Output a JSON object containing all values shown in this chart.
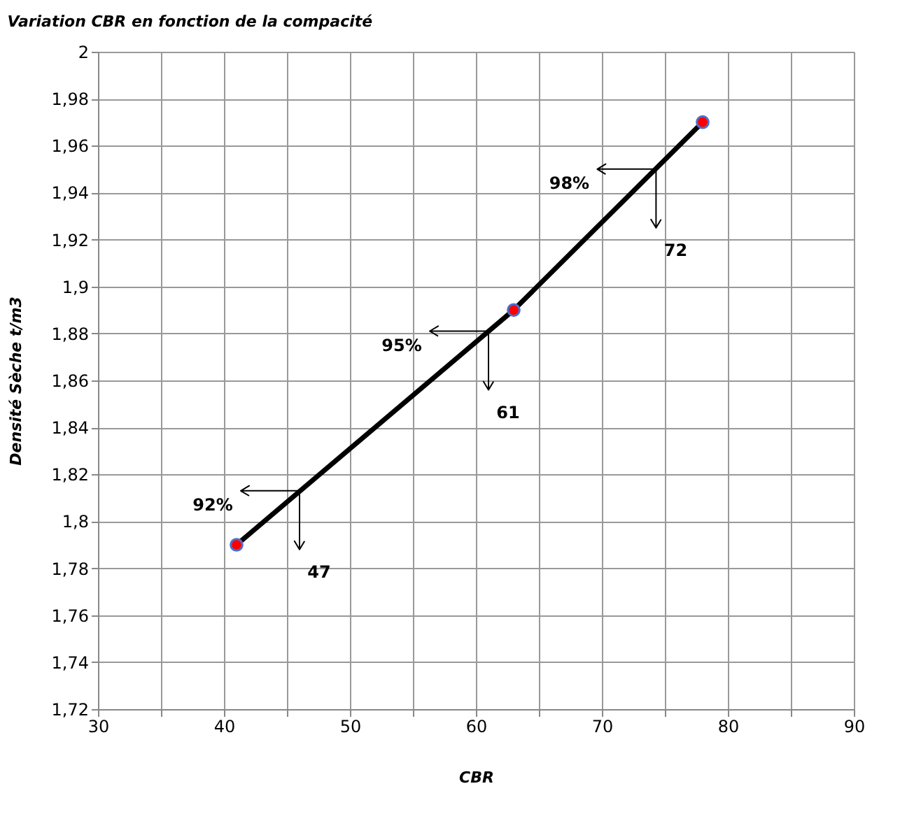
{
  "chart_data": {
    "type": "line",
    "title": "Variation CBR en fonction de la compacité",
    "xlabel": "CBR",
    "ylabel": "Densité Sèche t/m3",
    "x": [
      41,
      63,
      78
    ],
    "series": [
      {
        "color": "#000000",
        "values": [
          1.79,
          1.89,
          1.97
        ]
      },
      {
        "type": "scatter",
        "color": "#ff0000",
        "marker": "circle",
        "values": [
          1.79,
          1.89,
          1.97
        ]
      }
    ],
    "xlim": [
      30,
      90
    ],
    "xticks": [
      30,
      {
        "value": 35,
        "label": null
      },
      40,
      {
        "value": 45,
        "label": null
      },
      50,
      {
        "value": 55,
        "label": null
      },
      60,
      {
        "value": 65,
        "label": null
      },
      70,
      {
        "value": 75,
        "label": null
      },
      80,
      {
        "value": 85,
        "label": null
      },
      90
    ],
    "ylim": [
      1.72,
      2
    ],
    "yticks": [
      {
        "value": 1.72,
        "label": "1,72"
      },
      {
        "value": 1.74,
        "label": "1,74"
      },
      {
        "value": 1.76,
        "label": "1,76"
      },
      {
        "value": 1.78,
        "label": "1,78"
      },
      {
        "value": 1.8,
        "label": "1,8"
      },
      {
        "value": 1.82,
        "label": "1,82"
      },
      {
        "value": 1.84,
        "label": "1,84"
      },
      {
        "value": 1.86,
        "label": "1,86"
      },
      {
        "value": 1.88,
        "label": "1,88"
      },
      {
        "value": 1.9,
        "label": "1,9"
      },
      {
        "value": 1.92,
        "label": "1,92"
      },
      {
        "value": 1.94,
        "label": "1,94"
      },
      {
        "value": 1.96,
        "label": "1,96"
      },
      {
        "value": 1.98,
        "label": "1,98"
      },
      2
    ],
    "grid": true,
    "annotations": [
      {
        "text": "92%",
        "x": 46,
        "y": 1.813
      },
      {
        "text": "47",
        "x": 46,
        "y": 1.813
      },
      {
        "text": "95%",
        "x": 61,
        "y": 1.881
      },
      {
        "text": "61",
        "x": 61,
        "y": 1.881
      },
      {
        "text": "98%",
        "x": 74.3,
        "y": 1.95
      },
      {
        "text": "72",
        "x": 74.3,
        "y": 1.95
      }
    ]
  }
}
